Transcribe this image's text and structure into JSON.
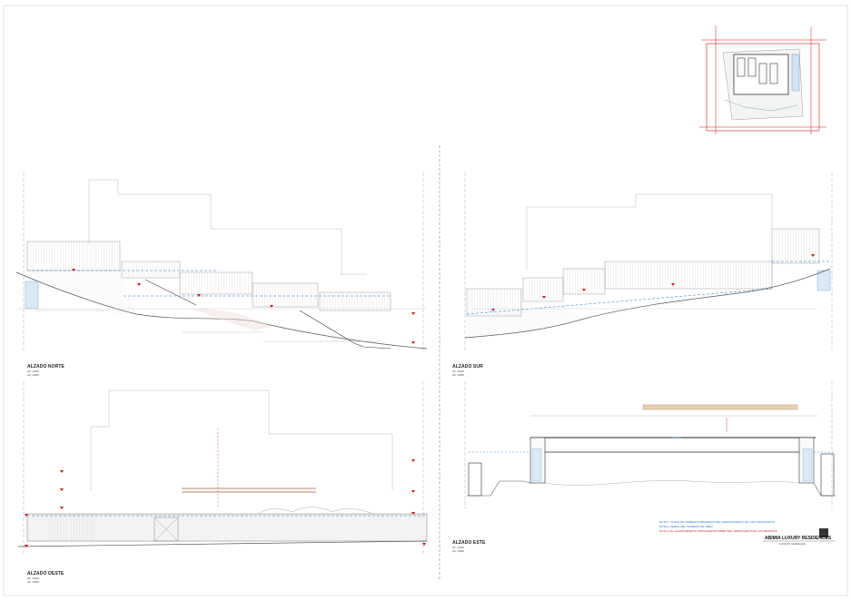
{
  "elevations": {
    "norte": {
      "title": "ALZADO NORTE",
      "scale": "A1: 1/100",
      "scale2": "A3: 1/200"
    },
    "sur": {
      "title": "ALZADO SUR",
      "scale": "A1: 1/100",
      "scale2": "A3: 1/200"
    },
    "oeste": {
      "title": "ALZADO OESTE",
      "scale": "A1: 1/100",
      "scale2": "A3: 1/200"
    },
    "este": {
      "title": "ALZADO ESTE",
      "scale": "A1: 1/100",
      "scale2": "A3: 1/200"
    }
  },
  "notes": {
    "note1": "NOTA 1: COTAS DE TERRENO OBTENIDAS DEL LEVANTAMIENTO DE LOS TOPOGRAFOS",
    "note2": "NOTA 2: PERFIL DEL TERRENO DE OBRA",
    "note3": "NOTA 3: EL LEVANTAMIENTO TOPOGRAFICO DEBE SER VERIFICADO POR LOS TECNICOS"
  },
  "titleblock": {
    "project": "ABIMIA LUXURY RESIDENCES",
    "subtitle": "ALZADOS GENERALES"
  },
  "colors": {
    "red": "#d01818",
    "blue": "#1e73c8",
    "line": "#555555",
    "hatch": "#c8c8c8"
  }
}
